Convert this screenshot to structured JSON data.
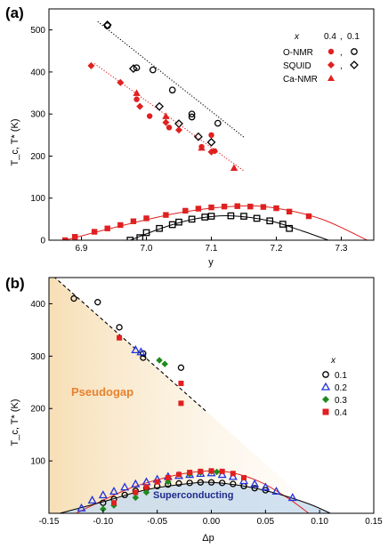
{
  "chart_data": [
    {
      "panel": "(a)",
      "type": "scatter",
      "xlabel": "y",
      "ylabel": "T_c, T* (K)",
      "xlim": [
        6.85,
        7.35
      ],
      "ylim": [
        0,
        550
      ],
      "xticks": [
        "6.9",
        "7.0",
        "7.1",
        "7.2",
        "7.3"
      ],
      "xtick_values": [
        6.9,
        7.0,
        7.1,
        7.2,
        7.3
      ],
      "yticks": [
        "0",
        "100",
        "200",
        "300",
        "400",
        "500"
      ],
      "ytick_values": [
        0,
        100,
        200,
        300,
        400,
        500
      ],
      "legend": {
        "title": "x",
        "col_labels": [
          "0.4",
          "0.1"
        ],
        "separator": ",",
        "rows": [
          "O-NMR",
          "SQUID",
          "Ca-NMR"
        ],
        "placement": "top-right"
      },
      "series": [
        {
          "key": "onmr_01",
          "marker": "circle-open",
          "color": "#000000",
          "points": [
            [
              6.94,
              510
            ],
            [
              6.985,
              410
            ],
            [
              7.01,
              405
            ],
            [
              7.04,
              357
            ],
            [
              7.07,
              300
            ],
            [
              7.07,
              293
            ],
            [
              7.11,
              278
            ]
          ]
        },
        {
          "key": "squid_01",
          "marker": "diamond-open",
          "color": "#000000",
          "points": [
            [
              6.94,
              512
            ],
            [
              6.98,
              408
            ],
            [
              7.02,
              318
            ],
            [
              7.05,
              277
            ],
            [
              7.08,
              246
            ],
            [
              7.1,
              233
            ]
          ]
        },
        {
          "key": "onmr_04",
          "marker": "circle-filled",
          "color": "#e02020",
          "points": [
            [
              6.985,
              335
            ],
            [
              7.005,
              295
            ],
            [
              7.035,
              268
            ],
            [
              7.085,
              222
            ],
            [
              7.1,
              250
            ],
            [
              7.105,
              212
            ]
          ]
        },
        {
          "key": "squid_04",
          "marker": "diamond-filled",
          "color": "#e02020",
          "points": [
            [
              6.915,
              415
            ],
            [
              6.96,
              375
            ],
            [
              6.99,
              318
            ],
            [
              7.03,
              280
            ],
            [
              7.05,
              262
            ],
            [
              7.1,
              210
            ]
          ]
        },
        {
          "key": "canmr_04",
          "marker": "triangle-filled",
          "color": "#e02020",
          "points": [
            [
              6.985,
              350
            ],
            [
              7.03,
              295
            ],
            [
              7.085,
              220
            ],
            [
              7.135,
              172
            ]
          ]
        },
        {
          "key": "tc_04",
          "marker": "square-filled",
          "color": "#e02020",
          "points": [
            [
              6.875,
              0
            ],
            [
              6.89,
              8
            ],
            [
              6.92,
              20
            ],
            [
              6.94,
              28
            ],
            [
              6.96,
              36
            ],
            [
              6.98,
              45
            ],
            [
              7.0,
              52
            ],
            [
              7.03,
              60
            ],
            [
              7.06,
              70
            ],
            [
              7.08,
              75
            ],
            [
              7.1,
              78
            ],
            [
              7.12,
              80
            ],
            [
              7.14,
              81
            ],
            [
              7.16,
              80
            ],
            [
              7.18,
              79
            ],
            [
              7.2,
              76
            ],
            [
              7.22,
              68
            ],
            [
              7.25,
              57
            ]
          ]
        },
        {
          "key": "tc_01",
          "marker": "square-open",
          "color": "#000000",
          "points": [
            [
              6.975,
              0
            ],
            [
              6.99,
              6
            ],
            [
              7.0,
              18
            ],
            [
              7.02,
              28
            ],
            [
              7.04,
              37
            ],
            [
              7.05,
              43
            ],
            [
              7.07,
              50
            ],
            [
              7.09,
              55
            ],
            [
              7.1,
              57
            ],
            [
              7.13,
              58
            ],
            [
              7.15,
              57
            ],
            [
              7.17,
              52
            ],
            [
              7.19,
              46
            ],
            [
              7.21,
              38
            ],
            [
              7.22,
              28
            ]
          ]
        }
      ],
      "fits": [
        {
          "key": "tstar_fit_01",
          "style": "dotted",
          "color": "#000000",
          "points": [
            [
              6.925,
              520
            ],
            [
              7.15,
              245
            ]
          ]
        },
        {
          "key": "tstar_fit_04",
          "style": "dotted",
          "color": "#e02020",
          "points": [
            [
              6.92,
              420
            ],
            [
              7.15,
              165
            ]
          ]
        },
        {
          "key": "dome_fit_04",
          "style": "solid",
          "color": "#e02020",
          "points": [
            [
              6.875,
              0
            ],
            [
              6.95,
              30
            ],
            [
              7.05,
              65
            ],
            [
              7.14,
              81
            ],
            [
              7.2,
              76
            ],
            [
              7.27,
              50
            ],
            [
              7.34,
              0
            ]
          ]
        },
        {
          "key": "dome_fit_01",
          "style": "solid",
          "color": "#000000",
          "points": [
            [
              6.975,
              0
            ],
            [
              7.03,
              32
            ],
            [
              7.08,
              52
            ],
            [
              7.13,
              58
            ],
            [
              7.19,
              46
            ],
            [
              7.24,
              22
            ],
            [
              7.28,
              0
            ]
          ]
        }
      ]
    },
    {
      "panel": "(b)",
      "type": "scatter",
      "xlabel": "Δp",
      "ylabel": "T_c, T* (K)",
      "xlim": [
        -0.15,
        0.15
      ],
      "ylim": [
        0,
        450
      ],
      "xticks": [
        "-0.15",
        "-0.10",
        "-0.05",
        "0.00",
        "0.05",
        "0.10",
        "0.15"
      ],
      "xtick_values": [
        -0.15,
        -0.1,
        -0.05,
        0.0,
        0.05,
        0.1,
        0.15
      ],
      "yticks": [
        "100",
        "200",
        "300",
        "400"
      ],
      "ytick_values": [
        100,
        200,
        300,
        400
      ],
      "legend": {
        "title": "x",
        "entries": [
          {
            "label": "0.1",
            "marker": "circle-open",
            "color": "#000000"
          },
          {
            "label": "0.2",
            "marker": "triangle-open",
            "color": "#2233dd"
          },
          {
            "label": "0.3",
            "marker": "diamond-filled",
            "color": "#1f8a1f"
          },
          {
            "label": "0.4",
            "marker": "square-filled",
            "color": "#e02020"
          }
        ],
        "placement": "right"
      },
      "regions": {
        "pseudogap": "Pseudogap",
        "superconducting": "Superconducting"
      },
      "series": [
        {
          "key": "tstar_01",
          "marker": "circle-open",
          "color": "#000000",
          "points": [
            [
              -0.127,
              410
            ],
            [
              -0.105,
              403
            ],
            [
              -0.085,
              355
            ],
            [
              -0.063,
              305
            ],
            [
              -0.063,
              297
            ],
            [
              -0.028,
              278
            ]
          ]
        },
        {
          "key": "tstar_02",
          "marker": "triangle-open",
          "color": "#2233dd",
          "points": [
            [
              -0.07,
              312
            ],
            [
              -0.065,
              308
            ]
          ]
        },
        {
          "key": "tstar_03",
          "marker": "diamond-filled",
          "color": "#1f8a1f",
          "points": [
            [
              -0.048,
              292
            ],
            [
              -0.043,
              285
            ]
          ]
        },
        {
          "key": "tstar_04",
          "marker": "square-filled",
          "color": "#e02020",
          "points": [
            [
              -0.085,
              335
            ],
            [
              -0.028,
              248
            ],
            [
              -0.028,
              210
            ]
          ]
        },
        {
          "key": "tc_01",
          "marker": "circle-open",
          "color": "#000000",
          "points": [
            [
              -0.1,
              20
            ],
            [
              -0.09,
              27
            ],
            [
              -0.08,
              35
            ],
            [
              -0.07,
              43
            ],
            [
              -0.06,
              48
            ],
            [
              -0.05,
              52
            ],
            [
              -0.04,
              55
            ],
            [
              -0.03,
              57
            ],
            [
              -0.02,
              58
            ],
            [
              -0.01,
              59
            ],
            [
              0.0,
              59
            ],
            [
              0.01,
              58
            ],
            [
              0.02,
              56
            ],
            [
              0.03,
              52
            ],
            [
              0.04,
              48
            ],
            [
              0.05,
              44
            ]
          ]
        },
        {
          "key": "tc_02",
          "marker": "triangle-open",
          "color": "#2233dd",
          "points": [
            [
              -0.12,
              10
            ],
            [
              -0.11,
              25
            ],
            [
              -0.1,
              35
            ],
            [
              -0.09,
              42
            ],
            [
              -0.08,
              50
            ],
            [
              -0.07,
              56
            ],
            [
              -0.06,
              60
            ],
            [
              -0.05,
              65
            ],
            [
              -0.04,
              70
            ],
            [
              -0.03,
              72
            ],
            [
              -0.02,
              74
            ],
            [
              -0.01,
              76
            ],
            [
              0.0,
              77
            ],
            [
              0.01,
              74
            ],
            [
              0.02,
              70
            ],
            [
              0.03,
              62
            ],
            [
              0.04,
              56
            ],
            [
              0.05,
              50
            ],
            [
              0.06,
              42
            ],
            [
              0.075,
              30
            ]
          ]
        },
        {
          "key": "tc_03",
          "marker": "diamond-filled",
          "color": "#1f8a1f",
          "points": [
            [
              -0.1,
              8
            ],
            [
              -0.09,
              15
            ],
            [
              -0.07,
              30
            ],
            [
              -0.06,
              40
            ],
            [
              -0.04,
              60
            ],
            [
              -0.02,
              75
            ],
            [
              -0.01,
              78
            ],
            [
              0.0,
              80
            ],
            [
              0.005,
              79
            ]
          ]
        },
        {
          "key": "tc_04",
          "marker": "square-filled",
          "color": "#e02020",
          "points": [
            [
              -0.09,
              20
            ],
            [
              -0.07,
              40
            ],
            [
              -0.06,
              50
            ],
            [
              -0.05,
              60
            ],
            [
              -0.04,
              68
            ],
            [
              -0.03,
              74
            ],
            [
              -0.02,
              78
            ],
            [
              -0.01,
              80
            ],
            [
              0.0,
              81
            ],
            [
              0.01,
              80
            ],
            [
              0.02,
              76
            ],
            [
              0.03,
              68
            ]
          ]
        }
      ],
      "fits": [
        {
          "key": "tstar_fit",
          "style": "dashed",
          "color": "#000000",
          "points": [
            [
              -0.15,
              460
            ],
            [
              -0.005,
              195
            ]
          ]
        },
        {
          "key": "dome_fit_red",
          "style": "solid",
          "color": "#e02020",
          "points": [
            [
              -0.125,
              0
            ],
            [
              -0.1,
              25
            ],
            [
              -0.075,
              48
            ],
            [
              -0.05,
              64
            ],
            [
              -0.025,
              76
            ],
            [
              0.0,
              81
            ],
            [
              0.02,
              77
            ],
            [
              0.045,
              60
            ],
            [
              0.07,
              30
            ],
            [
              0.09,
              0
            ]
          ]
        },
        {
          "key": "dome_fit_black",
          "style": "solid",
          "color": "#000000",
          "points": [
            [
              -0.14,
              0
            ],
            [
              -0.1,
              22
            ],
            [
              -0.06,
              45
            ],
            [
              -0.02,
              57
            ],
            [
              0.0,
              59
            ],
            [
              0.03,
              52
            ],
            [
              0.06,
              38
            ],
            [
              0.09,
              18
            ],
            [
              0.11,
              0
            ]
          ]
        }
      ]
    }
  ]
}
